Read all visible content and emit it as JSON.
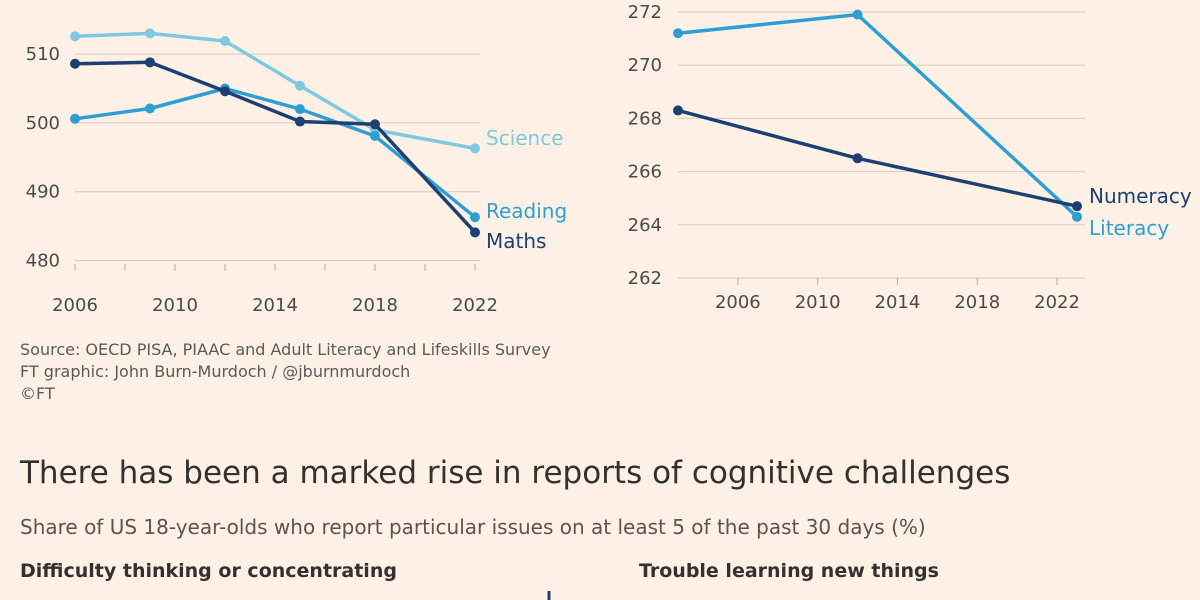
{
  "chart_data": [
    {
      "type": "line",
      "title": "",
      "xlabel": "",
      "ylabel": "",
      "x_ticks": [
        "2006",
        "2010",
        "2014",
        "2018",
        "2022"
      ],
      "y_ticks": [
        "480",
        "490",
        "500",
        "510"
      ],
      "xlim": [
        2006,
        2022
      ],
      "ylim": [
        479.5,
        513.5
      ],
      "series": [
        {
          "name": "Science",
          "color": "#7fc9e0",
          "x": [
            2006,
            2009,
            2012,
            2015,
            2018,
            2022
          ],
          "y": [
            512.6,
            513.0,
            511.9,
            505.4,
            499.0,
            496.3
          ]
        },
        {
          "name": "Reading",
          "color": "#2f9fd3",
          "x": [
            2006,
            2009,
            2012,
            2015,
            2018,
            2022
          ],
          "y": [
            500.6,
            502.1,
            505.0,
            502.0,
            498.1,
            486.3
          ]
        },
        {
          "name": "Maths",
          "color": "#1d3f72",
          "x": [
            2006,
            2009,
            2012,
            2015,
            2018,
            2022
          ],
          "y": [
            508.6,
            508.8,
            504.6,
            500.2,
            499.8,
            484.1
          ]
        }
      ]
    },
    {
      "type": "line",
      "title": "",
      "xlabel": "",
      "ylabel": "",
      "x_ticks": [
        "2006",
        "2010",
        "2014",
        "2018",
        "2022"
      ],
      "y_ticks": [
        "262",
        "264",
        "266",
        "268",
        "270",
        "272"
      ],
      "xlim": [
        2003,
        2023
      ],
      "ylim": [
        262,
        272.3
      ],
      "series": [
        {
          "name": "Literacy",
          "color": "#2f9fd3",
          "x": [
            2003,
            2012,
            2023
          ],
          "y": [
            271.2,
            271.9,
            264.3
          ]
        },
        {
          "name": "Numeracy",
          "color": "#1d3f72",
          "x": [
            2003,
            2012,
            2023
          ],
          "y": [
            268.3,
            266.5,
            264.7
          ]
        }
      ]
    }
  ],
  "source": {
    "line1": "Source: OECD PISA, PIAAC and Adult Literacy and Lifeskills Survey",
    "line2": "FT graphic: John Burn-Murdoch / @jburnmurdoch",
    "line3": "©FT"
  },
  "headline": "There has been a marked rise in reports of cognitive challenges",
  "subtitle": "Share of US 18-year-olds who report particular issues on at least 5 of the past 30 days (%)",
  "panels": {
    "left_title": "Difficulty thinking or concentrating",
    "right_title": "Trouble learning new things"
  },
  "colors": {
    "background": "#fdf1e6",
    "grid": "#d6ccc4"
  }
}
